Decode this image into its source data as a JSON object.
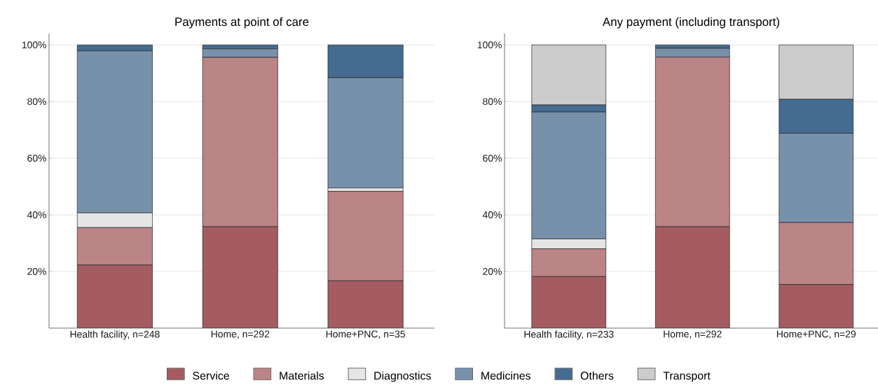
{
  "chart_data": [
    {
      "type": "bar",
      "stacked": true,
      "title": "Payments at point of care",
      "categories": [
        "Health facility, n=248",
        "Home, n=292",
        "Home+PNC, n=35"
      ],
      "ylim": [
        0,
        104
      ],
      "yticks": [
        {
          "value": 20,
          "label": "20%"
        },
        {
          "value": 40,
          "label": "40%"
        },
        {
          "value": 60,
          "label": "60%"
        },
        {
          "value": 80,
          "label": "80%"
        },
        {
          "value": 100,
          "label": "100%"
        }
      ],
      "grid": "y",
      "series": [
        {
          "color": "#a45c60",
          "values": [
            22.3,
            35.8,
            16.7
          ]
        },
        {
          "color": "#bb8486",
          "values": [
            13.2,
            59.8,
            31.6
          ]
        },
        {
          "color": "#e5e5e5",
          "values": [
            5.2,
            0,
            1.2
          ]
        },
        {
          "color": "#7891ab",
          "values": [
            57.2,
            3.0,
            38.9
          ]
        },
        {
          "color": "#456b8e",
          "values": [
            2.1,
            1.4,
            11.6
          ]
        }
      ]
    },
    {
      "type": "bar",
      "stacked": true,
      "title": "Any payment (including transport)",
      "categories": [
        "Health facility, n=233",
        "Home, n=292",
        "Home+PNC, n=29"
      ],
      "ylim": [
        0,
        104
      ],
      "yticks": [
        {
          "value": 20,
          "label": "20%"
        },
        {
          "value": 40,
          "label": "40%"
        },
        {
          "value": 60,
          "label": "60%"
        },
        {
          "value": 80,
          "label": "80%"
        },
        {
          "value": 100,
          "label": "100%"
        }
      ],
      "grid": "y",
      "legend": "bottom",
      "series": [
        {
          "name": "Service",
          "color": "#a45c60",
          "values": [
            18.2,
            35.8,
            15.4
          ]
        },
        {
          "name": "Materials",
          "color": "#bb8486",
          "values": [
            9.8,
            59.9,
            21.9
          ]
        },
        {
          "name": "Diagnostics",
          "color": "#e5e5e5",
          "values": [
            3.5,
            0,
            0
          ]
        },
        {
          "name": "Medicines",
          "color": "#7891ab",
          "values": [
            44.8,
            3.1,
            31.5
          ]
        },
        {
          "name": "Others",
          "color": "#456b8e",
          "values": [
            2.5,
            1.2,
            12.0
          ]
        },
        {
          "name": "Transport",
          "color": "#cccccc",
          "values": [
            21.2,
            0,
            19.2
          ]
        }
      ]
    }
  ]
}
